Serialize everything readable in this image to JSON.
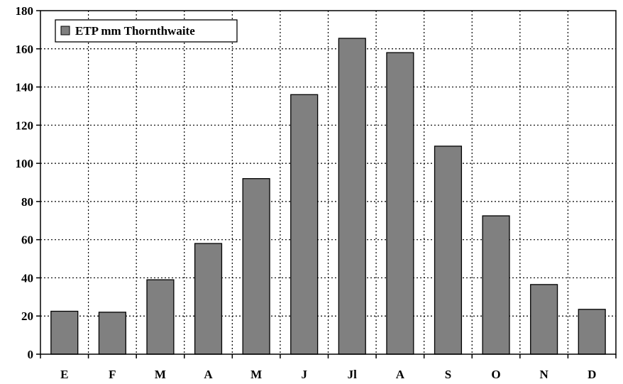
{
  "chart_data": {
    "type": "bar",
    "categories": [
      "E",
      "F",
      "M",
      "A",
      "M",
      "J",
      "Jl",
      "A",
      "S",
      "O",
      "N",
      "D"
    ],
    "series": [
      {
        "name": "ETP mm Thornthwaite",
        "values": [
          22.5,
          22,
          39,
          58,
          92,
          136,
          165.5,
          158,
          109,
          72.5,
          36.5,
          23.5
        ],
        "color": "#808080"
      }
    ],
    "title": "",
    "xlabel": "",
    "ylabel": "",
    "ylim": [
      0,
      180
    ],
    "yticks": [
      0,
      20,
      40,
      60,
      80,
      100,
      120,
      140,
      160,
      180
    ],
    "grid": true,
    "legend_position": "top-left"
  }
}
